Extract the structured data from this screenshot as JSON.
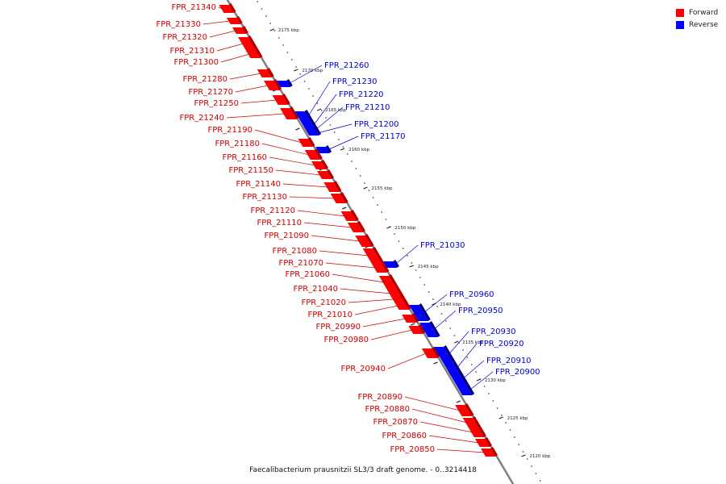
{
  "caption": "Faecalibacterium prausnitzii SL3/3 draft genome. - 0..3214418",
  "legend": [
    {
      "label": "Forward",
      "color": "#ff0000"
    },
    {
      "label": "Reverse",
      "color": "#0000ff"
    }
  ],
  "colors": {
    "forward": "#ff0000",
    "reverse": "#0000ff",
    "forward_label": "#cc0000",
    "reverse_label": "#0000cc",
    "axis": "#808080"
  },
  "ticks": [
    "2175 kbp",
    "2170 kbp",
    "2165 kbp",
    "2160 kbp",
    "2155 kbp",
    "2150 kbp",
    "2145 kbp",
    "2140 kbp",
    "2135 kbp",
    "2130 kbp",
    "2125 kbp",
    "2120 kbp"
  ],
  "forward_genes": [
    "FPR_21340",
    "FPR_21330",
    "FPR_21320",
    "FPR_21310",
    "FPR_21300",
    "FPR_21280",
    "FPR_21270",
    "FPR_21250",
    "FPR_21240",
    "FPR_21190",
    "FPR_21180",
    "FPR_21160",
    "FPR_21150",
    "FPR_21140",
    "FPR_21130",
    "FPR_21120",
    "FPR_21110",
    "FPR_21090",
    "FPR_21080",
    "FPR_21070",
    "FPR_21060",
    "FPR_21040",
    "FPR_21020",
    "FPR_21010",
    "FPR_20990",
    "FPR_20980",
    "FPR_20940",
    "FPR_20890",
    "FPR_20880",
    "FPR_20870",
    "FPR_20860",
    "FPR_20850"
  ],
  "reverse_genes": [
    "FPR_21260",
    "FPR_21230",
    "FPR_21220",
    "FPR_21210",
    "FPR_21200",
    "FPR_21170",
    "FPR_21030",
    "FPR_20960",
    "FPR_20950",
    "FPR_20930",
    "FPR_20920",
    "FPR_20910",
    "FPR_20900"
  ]
}
